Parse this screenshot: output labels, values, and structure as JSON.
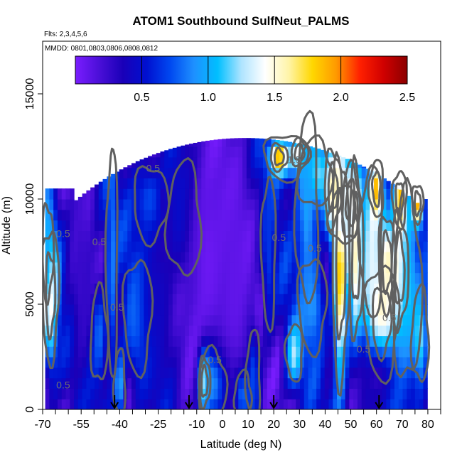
{
  "chart_data": {
    "type": "heatmap",
    "title": "ATOM1 Southbound SulfNeut_PALMS",
    "flights_note": "Flts: 2,3,4,5,6",
    "dates_note": "MMDD: 0801,0803,0806,0808,0812",
    "xlabel": "Latitude (deg N)",
    "ylabel": "Altitude (m)",
    "xlim": [
      -70,
      85
    ],
    "ylim": [
      0,
      17500
    ],
    "x_ticks": [
      -70,
      -55,
      -40,
      -25,
      -10,
      0,
      10,
      20,
      30,
      40,
      50,
      60,
      70,
      80
    ],
    "x_minor_ticks": [
      -65,
      -60,
      -50,
      -45,
      -35,
      -30,
      -20,
      -15,
      -5,
      5,
      15,
      25,
      35,
      45,
      55,
      65,
      75,
      85
    ],
    "y_ticks": [
      0,
      5000,
      10000,
      15000
    ],
    "colorbar": {
      "min": 0.0,
      "max": 2.5,
      "ticks": [
        0.5,
        1.0,
        1.5,
        2.0,
        2.5
      ],
      "tick_labels": [
        "0.5",
        "1.0",
        "1.5",
        "2.0",
        "2.5"
      ],
      "colors": [
        "#7a1dff",
        "#4b0fd8",
        "#1a00b8",
        "#0010d0",
        "#0048f0",
        "#1e90ff",
        "#00bfff",
        "#aee4ff",
        "#ffffff",
        "#fff4a8",
        "#ffd700",
        "#ff9a00",
        "#ff2000",
        "#d00000",
        "#8b0000"
      ]
    },
    "arrow_latitudes": [
      -42,
      -13,
      20,
      61
    ],
    "contour_labels": [
      "0.5",
      "0.5",
      "0.5",
      "0.5",
      "0.5",
      "0.5",
      "1.5",
      "0.5",
      "0.5",
      "0.5",
      "0.5"
    ],
    "blobs": [
      {
        "lat": -67,
        "alt": 5500,
        "w": 3,
        "h": 3500,
        "v": 1.6
      },
      {
        "lat": -68,
        "alt": 7500,
        "w": 2,
        "h": 2500,
        "v": 1.0
      },
      {
        "lat": -55,
        "alt": 6500,
        "w": 5,
        "h": 6000,
        "v": 0.25
      },
      {
        "lat": -48,
        "alt": 3500,
        "w": 3,
        "h": 2500,
        "v": 0.8
      },
      {
        "lat": -40,
        "alt": 1200,
        "w": 2,
        "h": 1800,
        "v": 1.0
      },
      {
        "lat": -43,
        "alt": 7000,
        "w": 2,
        "h": 6000,
        "v": 0.85
      },
      {
        "lat": -33,
        "alt": 4500,
        "w": 5,
        "h": 3000,
        "v": 0.9
      },
      {
        "lat": -28,
        "alt": 9800,
        "w": 6,
        "h": 2000,
        "v": 0.85
      },
      {
        "lat": -23,
        "alt": 10000,
        "w": 1.5,
        "h": 800,
        "v": 0.3
      },
      {
        "lat": -18,
        "alt": 9500,
        "w": 1.5,
        "h": 800,
        "v": 0.3
      },
      {
        "lat": -15,
        "alt": 9000,
        "w": 6,
        "h": 3000,
        "v": 0.8
      },
      {
        "lat": -25,
        "alt": 5000,
        "w": 8,
        "h": 5000,
        "v": 0.45
      },
      {
        "lat": -5,
        "alt": 7000,
        "w": 12,
        "h": 8000,
        "v": 0.05
      },
      {
        "lat": 5,
        "alt": 6000,
        "w": 8,
        "h": 8000,
        "v": 0.1
      },
      {
        "lat": -7,
        "alt": 1300,
        "w": 2,
        "h": 1300,
        "v": 1.8
      },
      {
        "lat": -4,
        "alt": 1200,
        "w": 5,
        "h": 1800,
        "v": 0.9
      },
      {
        "lat": 8,
        "alt": 700,
        "w": 3,
        "h": 1200,
        "v": 0.8
      },
      {
        "lat": 12,
        "alt": 1500,
        "w": 2.5,
        "h": 2500,
        "v": 0.7
      },
      {
        "lat": 18,
        "alt": 7500,
        "w": 2.5,
        "h": 4000,
        "v": 0.65
      },
      {
        "lat": 25,
        "alt": 12000,
        "w": 8,
        "h": 1200,
        "v": 1.0
      },
      {
        "lat": 22,
        "alt": 12000,
        "w": 3,
        "h": 700,
        "v": 2.0
      },
      {
        "lat": 30,
        "alt": 12200,
        "w": 3,
        "h": 700,
        "v": 1.8
      },
      {
        "lat": 36,
        "alt": 11200,
        "w": 6,
        "h": 1800,
        "v": 1.3
      },
      {
        "lat": 33,
        "alt": 9500,
        "w": 4,
        "h": 5000,
        "v": 0.95
      },
      {
        "lat": 28,
        "alt": 2700,
        "w": 3,
        "h": 1500,
        "v": 1.3
      },
      {
        "lat": 35,
        "alt": 5000,
        "w": 5,
        "h": 2500,
        "v": 0.9
      },
      {
        "lat": 46,
        "alt": 6800,
        "w": 3,
        "h": 6000,
        "v": 1.9
      },
      {
        "lat": 52,
        "alt": 7500,
        "w": 2.5,
        "h": 4500,
        "v": 1.6
      },
      {
        "lat": 50,
        "alt": 9800,
        "w": 3,
        "h": 2000,
        "v": 1.6
      },
      {
        "lat": 47,
        "alt": 9200,
        "w": 5,
        "h": 1500,
        "v": 1.3
      },
      {
        "lat": 58,
        "alt": 8000,
        "w": 4,
        "h": 4000,
        "v": 1.3
      },
      {
        "lat": 62,
        "alt": 4200,
        "w": 6,
        "h": 3000,
        "v": 1.6
      },
      {
        "lat": 64,
        "alt": 7000,
        "w": 3,
        "h": 2500,
        "v": 1.6
      },
      {
        "lat": 69,
        "alt": 6600,
        "w": 3,
        "h": 3000,
        "v": 2.0
      },
      {
        "lat": 72,
        "alt": 5800,
        "w": 5,
        "h": 5000,
        "v": 1.1
      },
      {
        "lat": 77,
        "alt": 3500,
        "w": 3,
        "h": 2500,
        "v": 1.2
      },
      {
        "lat": 60,
        "alt": 10500,
        "w": 2.5,
        "h": 1500,
        "v": 1.9
      },
      {
        "lat": 69,
        "alt": 10000,
        "w": 2.5,
        "h": 1500,
        "v": 1.9
      },
      {
        "lat": 76,
        "alt": 9800,
        "w": 2,
        "h": 1000,
        "v": 1.9
      },
      {
        "lat": 43,
        "alt": 10500,
        "w": 3,
        "h": 2000,
        "v": 1.6
      },
      {
        "lat": 60,
        "alt": 1500,
        "w": 8,
        "h": 1800,
        "v": 0.3
      }
    ]
  }
}
